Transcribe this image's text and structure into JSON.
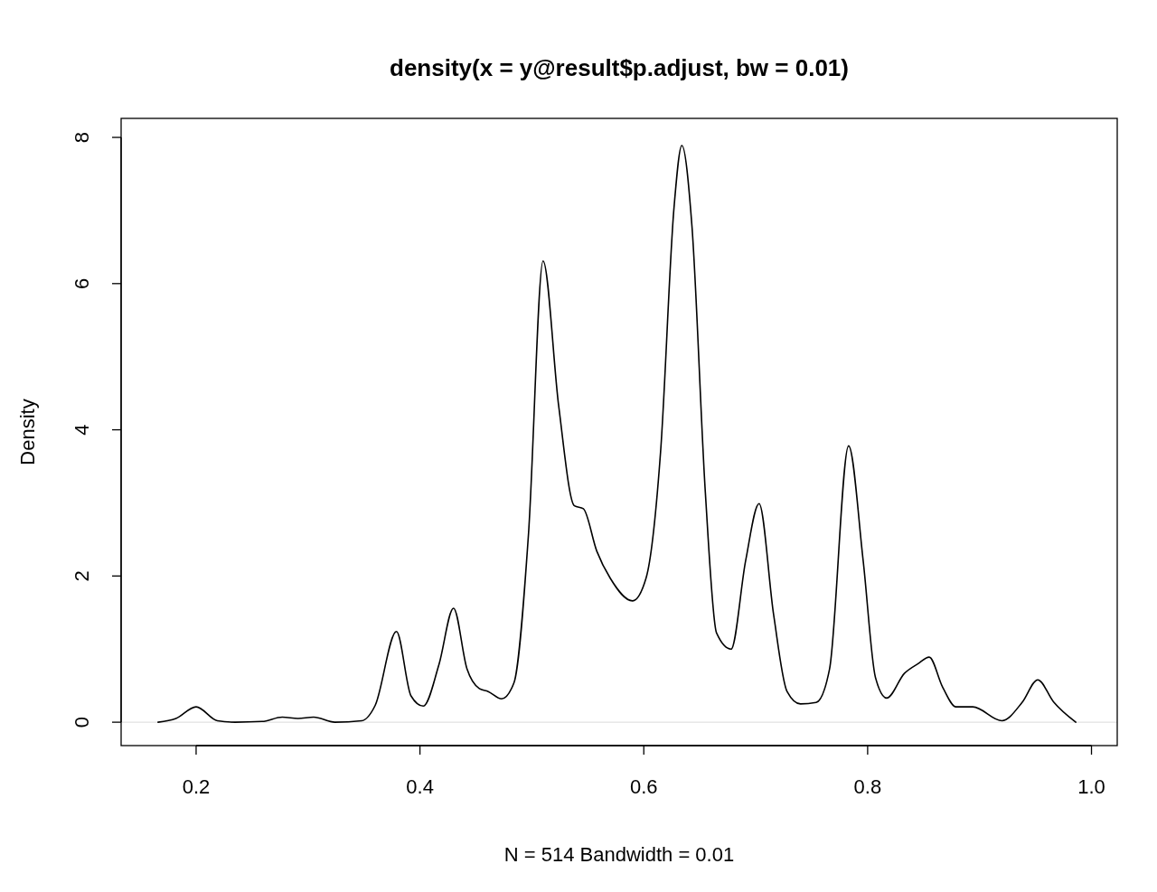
{
  "chart_data": {
    "type": "line",
    "title": "density(x = y@result$p.adjust, bw = 0.01)",
    "xlabel": "N = 514 Bandwidth = 0.01",
    "ylabel": "Density",
    "xlim": [
      0.133,
      1.023
    ],
    "ylim": [
      -0.32,
      8.26
    ],
    "xticks": [
      0.2,
      0.4,
      0.6,
      {
        "value": 1,
        "label": "1.0"
      },
      0.8
    ],
    "yticks": [
      0,
      2,
      4,
      6,
      8
    ],
    "grid": false,
    "marker": "none",
    "line_style": "solid",
    "ref_lines": [
      {
        "axis": "y",
        "value": 0,
        "color": "#d9d9d9"
      }
    ],
    "x": [
      0.166,
      0.182,
      0.2,
      0.219,
      0.235,
      0.259,
      0.277,
      0.291,
      0.305,
      0.324,
      0.348,
      0.36,
      0.379,
      0.392,
      0.403,
      0.417,
      0.43,
      0.442,
      0.453,
      0.461,
      0.473,
      0.484,
      0.497,
      0.51,
      0.524,
      0.538,
      0.546,
      0.558,
      0.57,
      0.59,
      0.602,
      0.615,
      0.627,
      0.634,
      0.643,
      0.655,
      0.665,
      0.678,
      0.691,
      0.703,
      0.716,
      0.728,
      0.74,
      0.754,
      0.766,
      0.783,
      0.796,
      0.807,
      0.817,
      0.833,
      0.845,
      0.855,
      0.867,
      0.879,
      0.894,
      0.92,
      0.938,
      0.952,
      0.966,
      0.986
    ],
    "series": [
      {
        "color": "#000000",
        "values": [
          0,
          0.05,
          0.21,
          0.02,
          0,
          0.01,
          0.07,
          0.05,
          0.07,
          0,
          0.02,
          0.23,
          1.24,
          0.36,
          0.22,
          0.79,
          1.56,
          0.73,
          0.46,
          0.42,
          0.32,
          0.54,
          2.58,
          6.31,
          4.32,
          2.96,
          2.92,
          2.34,
          1.97,
          1.66,
          1.97,
          3.7,
          7.04,
          7.89,
          6.79,
          3.14,
          1.22,
          1,
          2.21,
          2.99,
          1.47,
          0.42,
          0.25,
          0.27,
          0.73,
          3.78,
          2.21,
          0.61,
          0.33,
          0.67,
          0.8,
          0.89,
          0.48,
          0.21,
          0.21,
          0.02,
          0.27,
          0.58,
          0.28,
          0
        ]
      }
    ]
  }
}
